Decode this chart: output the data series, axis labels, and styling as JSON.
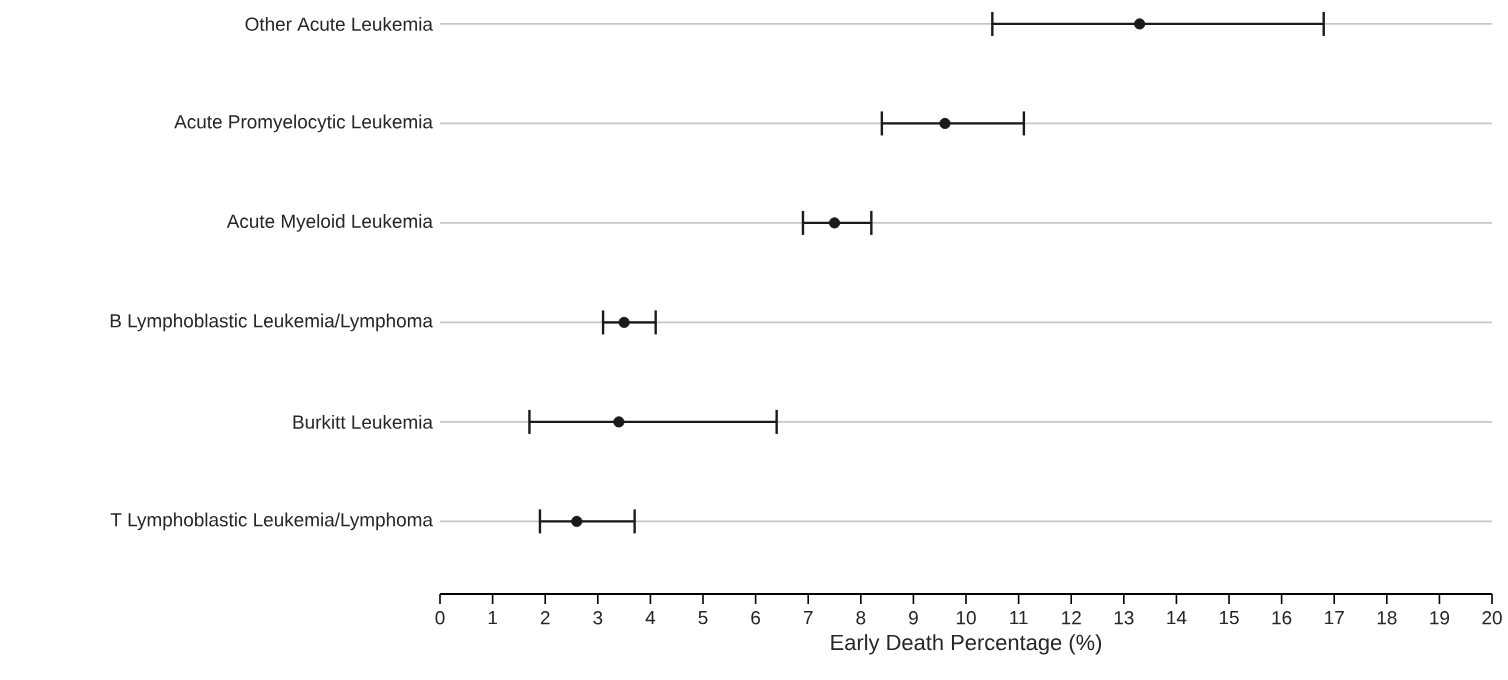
{
  "chart_data": {
    "type": "scatter",
    "orientation": "horizontal",
    "xlabel": "Early Death Percentage (%)",
    "categories": [
      "Other Acute Leukemia",
      "Acute Promyelocytic Leukemia",
      "Acute Myeloid Leukemia",
      "B Lymphoblastic Leukemia/Lymphoma",
      "Burkitt Leukemia",
      "T Lymphoblastic Leukemia/Lymphoma"
    ],
    "values": [
      13.3,
      9.6,
      7.5,
      3.5,
      3.4,
      2.6
    ],
    "errors": [
      [
        10.5,
        16.8
      ],
      [
        8.4,
        11.1
      ],
      [
        6.9,
        8.2
      ],
      [
        3.1,
        4.1
      ],
      [
        1.7,
        6.4
      ],
      [
        1.9,
        3.7
      ]
    ],
    "color": "#1a1a1a",
    "grid": "y",
    "xlim": [
      0,
      20
    ],
    "xticks": [
      0,
      1,
      2,
      3,
      4,
      5,
      6,
      7,
      8,
      9,
      10,
      11,
      12,
      13,
      14,
      15,
      16,
      17,
      18,
      19,
      20
    ]
  }
}
